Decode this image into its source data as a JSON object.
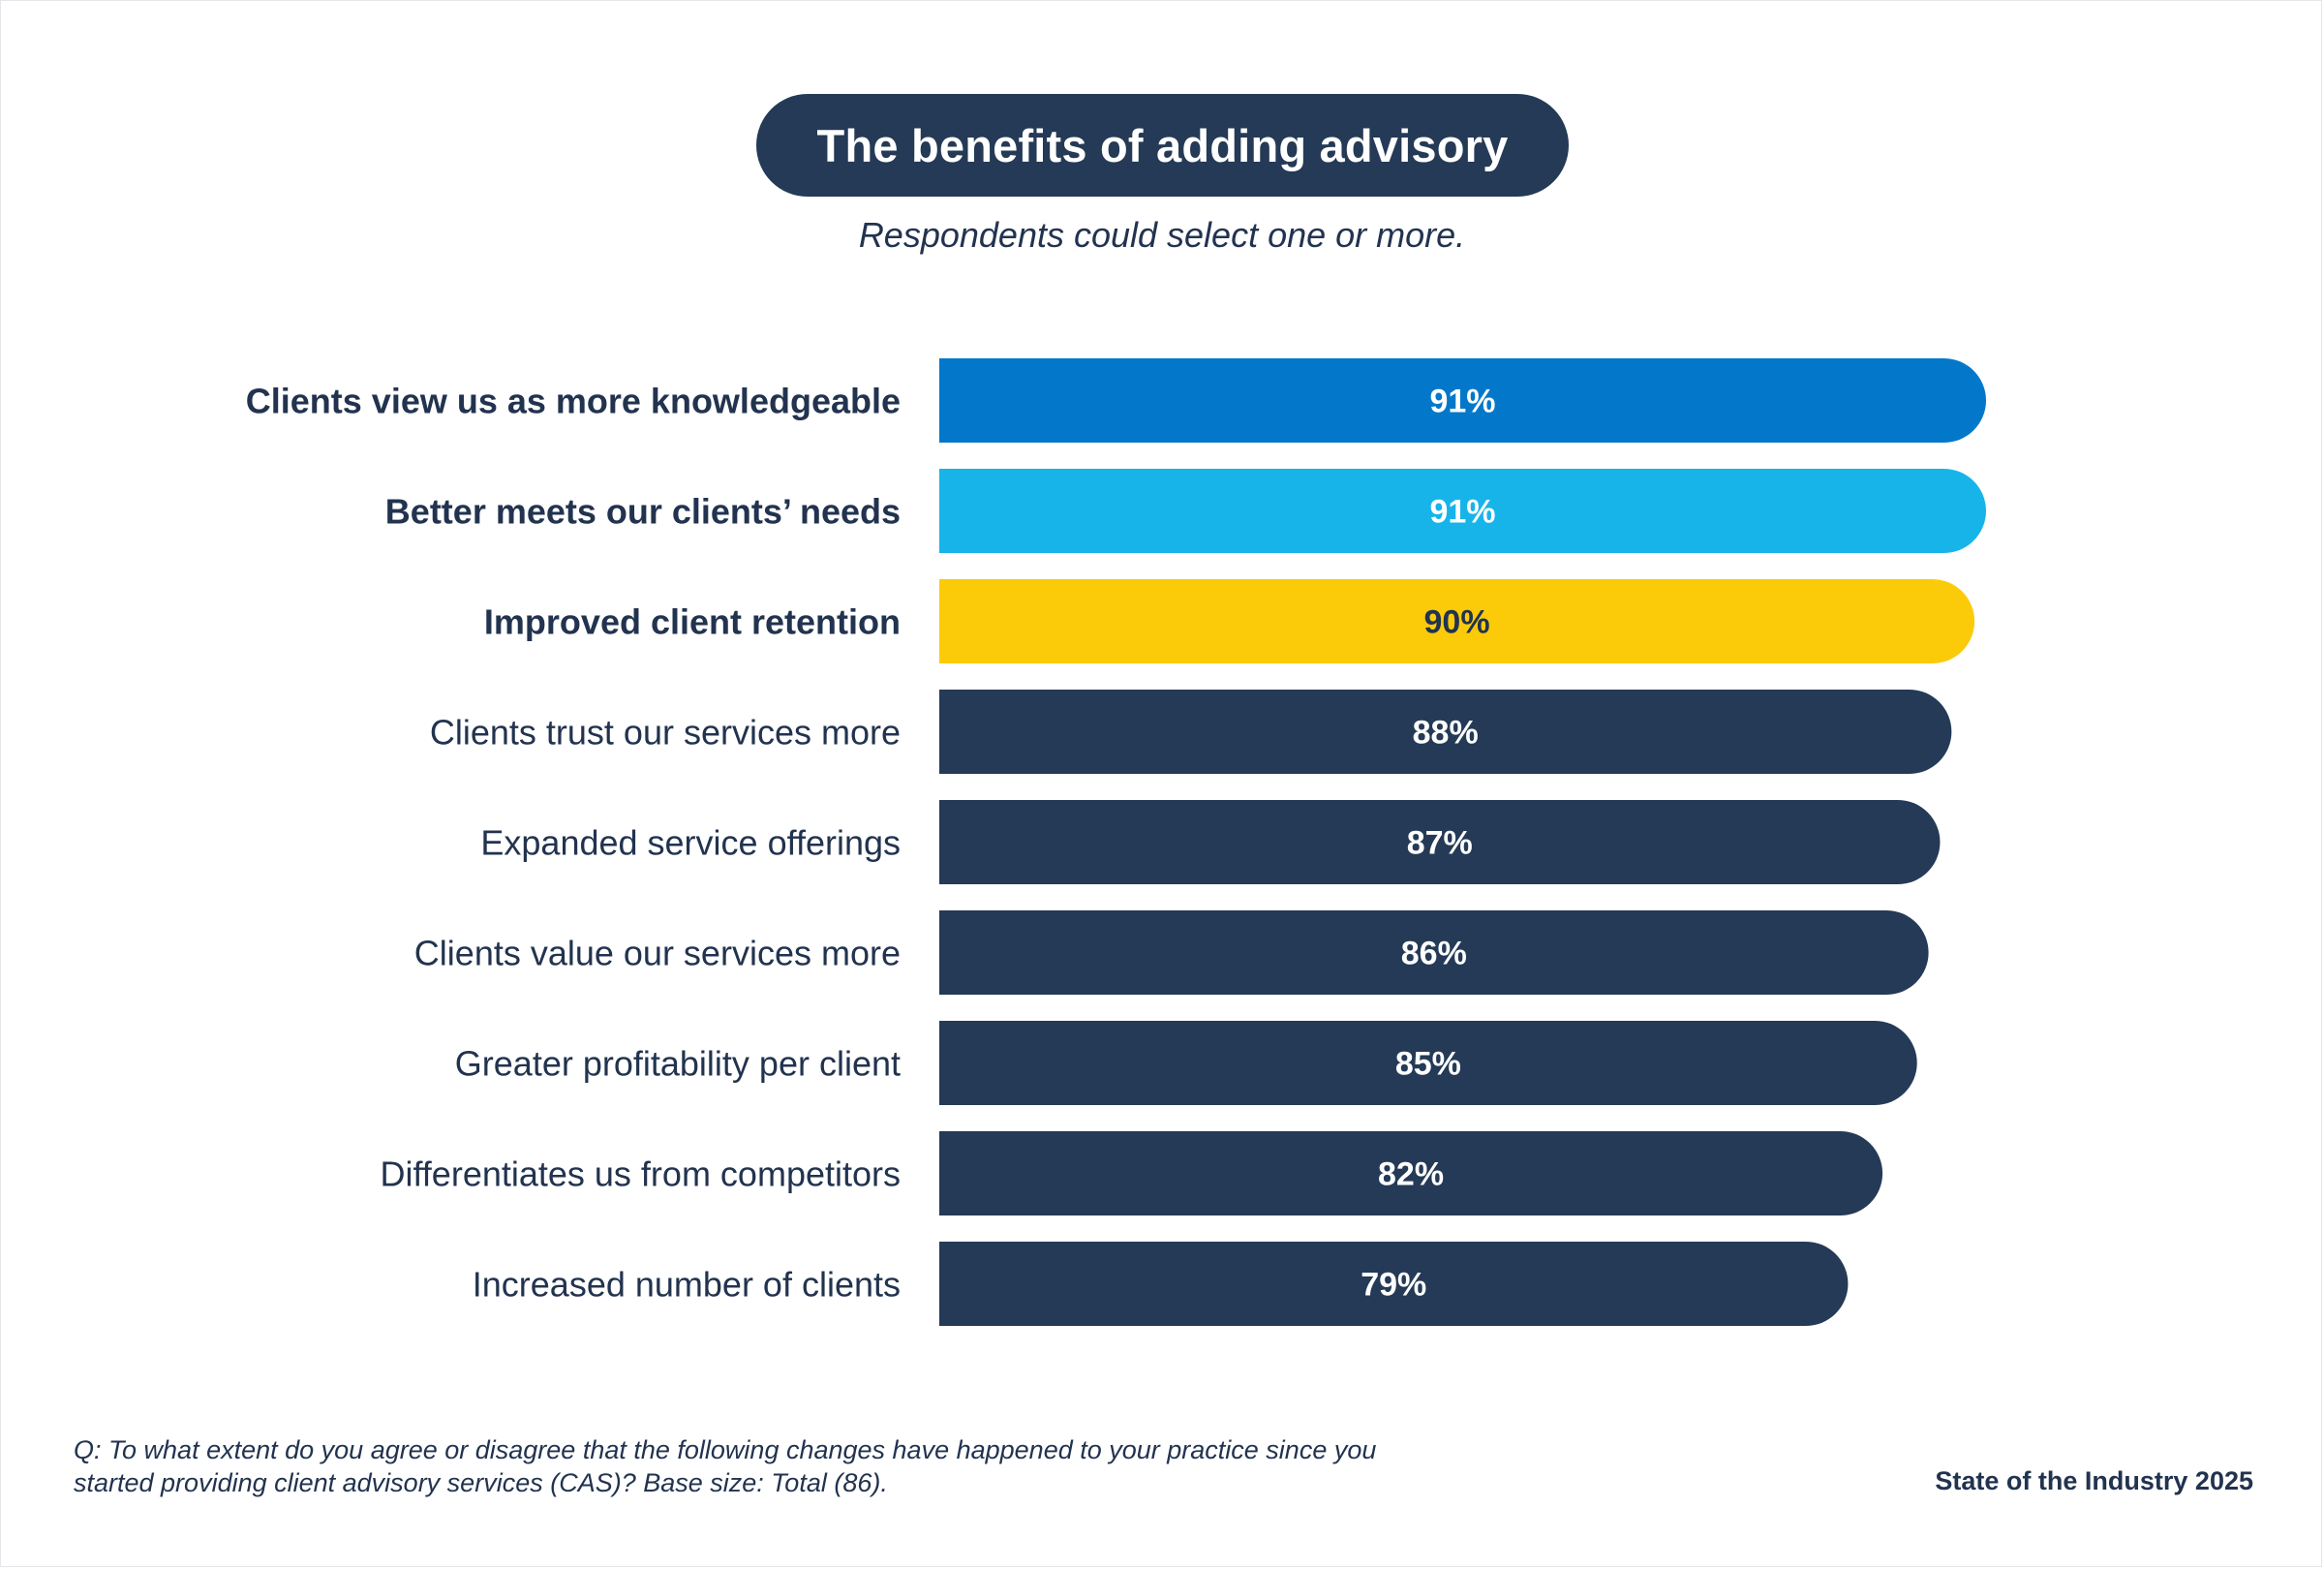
{
  "title": "The benefits of adding advisory",
  "subtitle": "Respondents could select one or more.",
  "chart_data": {
    "type": "bar",
    "orientation": "horizontal",
    "title": "The benefits of adding advisory",
    "subtitle": "Respondents could select one or more.",
    "xlim": [
      0,
      100
    ],
    "grid": false,
    "categories": [
      "Clients view us as more knowledgeable",
      "Better meets our clients’ needs",
      "Improved client retention",
      "Clients trust our services more",
      "Expanded service offerings",
      "Clients value our services more",
      "Greater profitability per client",
      "Differentiates us from competitors",
      "Increased number of clients"
    ],
    "values": [
      91,
      91,
      90,
      88,
      87,
      86,
      85,
      82,
      79
    ],
    "value_labels": [
      "91%",
      "91%",
      "90%",
      "88%",
      "87%",
      "86%",
      "85%",
      "82%",
      "79%"
    ],
    "highlighted": [
      true,
      true,
      true,
      false,
      false,
      false,
      false,
      false,
      false
    ],
    "bar_colors": [
      "#0378ca",
      "#17b4ea",
      "#fbcb0a",
      "#243a56",
      "#243a56",
      "#243a56",
      "#243a56",
      "#243a56",
      "#243a56"
    ],
    "label_colors": [
      "#ffffff",
      "#ffffff",
      "#22334f",
      "#ffffff",
      "#ffffff",
      "#ffffff",
      "#ffffff",
      "#ffffff",
      "#ffffff"
    ]
  },
  "footnote": {
    "line1": "Q: To what extent do you agree or disagree that the following changes have happened to your practice since you",
    "line2": "started providing client advisory services (CAS)? Base size: Total (86)."
  },
  "source": "State of the Industry 2025"
}
